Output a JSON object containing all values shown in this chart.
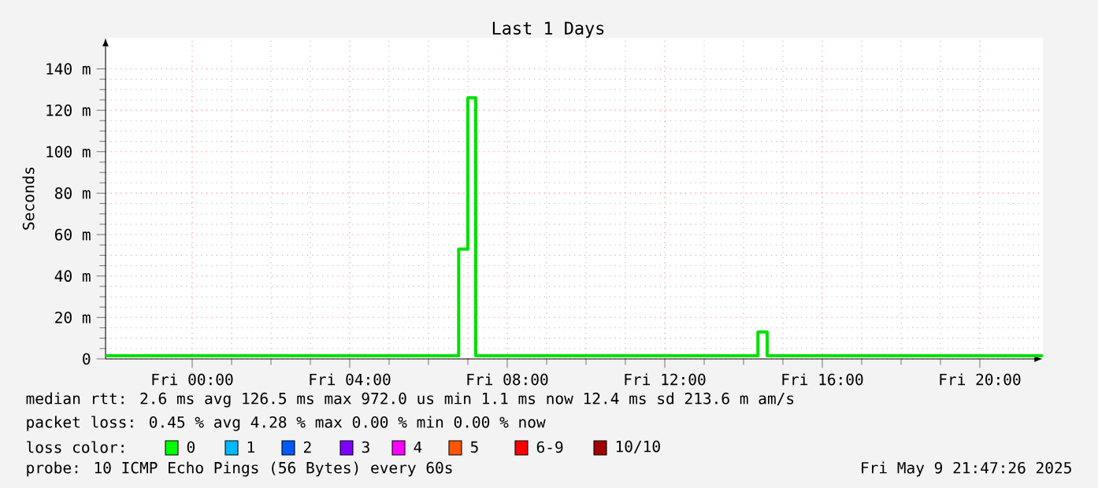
{
  "chart_data": {
    "type": "step",
    "title": "Last 1  Days",
    "ylabel": "Seconds",
    "x": [
      "2025-05-08T21:48",
      "2025-05-09T00:00",
      "2025-05-09T02:00",
      "2025-05-09T04:00",
      "2025-05-09T06:00",
      "2025-05-09T06:46",
      "2025-05-09T07:00",
      "2025-05-09T07:12",
      "2025-05-09T10:00",
      "2025-05-09T14:22",
      "2025-05-09T14:36",
      "2025-05-09T18:00",
      "2025-05-09T21:36"
    ],
    "series": [
      {
        "color": "#00e000",
        "values": [
          1.5,
          1.5,
          1.5,
          1.5,
          1.5,
          53,
          126,
          1.5,
          1.5,
          13,
          1.5,
          1.5,
          1.5
        ]
      }
    ],
    "xlim": [
      "2025-05-08T21:48",
      "2025-05-09T21:36"
    ],
    "xticks": [
      {
        "value": "2025-05-09T00:00",
        "label": "Fri 00:00"
      },
      {
        "value": "2025-05-09T04:00",
        "label": "Fri 04:00"
      },
      {
        "value": "2025-05-09T08:00",
        "label": "Fri 08:00"
      },
      {
        "value": "2025-05-09T12:00",
        "label": "Fri 12:00"
      },
      {
        "value": "2025-05-09T16:00",
        "label": "Fri 16:00"
      },
      {
        "value": "2025-05-09T20:00",
        "label": "Fri 20:00"
      }
    ],
    "ylim": [
      0,
      155
    ],
    "yticks": [
      0,
      {
        "value": 20,
        "label": "20 m"
      },
      {
        "value": 40,
        "label": "40 m"
      },
      {
        "value": 60,
        "label": "60 m"
      },
      {
        "value": 80,
        "label": "80 m"
      },
      {
        "value": 100,
        "label": "100 m"
      },
      {
        "value": 120,
        "label": "120 m"
      },
      {
        "value": 140,
        "label": "140 m"
      }
    ],
    "grid": true,
    "annotations": [
      "median rtt:  2.6 ms avg  126.5 ms max  972.0 us min  1.1 ms now  12.4 ms sd  213.6 m am/s",
      "packet loss: 0.45 % avg  4.28 % max  0.00 % min  0.00 % now",
      "loss color:",
      "0",
      "1",
      "2",
      "3",
      "4",
      "5",
      "6-9",
      "10/10",
      "probe:       10 ICMP Echo Pings (56 Bytes) every 60s",
      "Fri May  9 21:47:26 2025"
    ]
  }
}
